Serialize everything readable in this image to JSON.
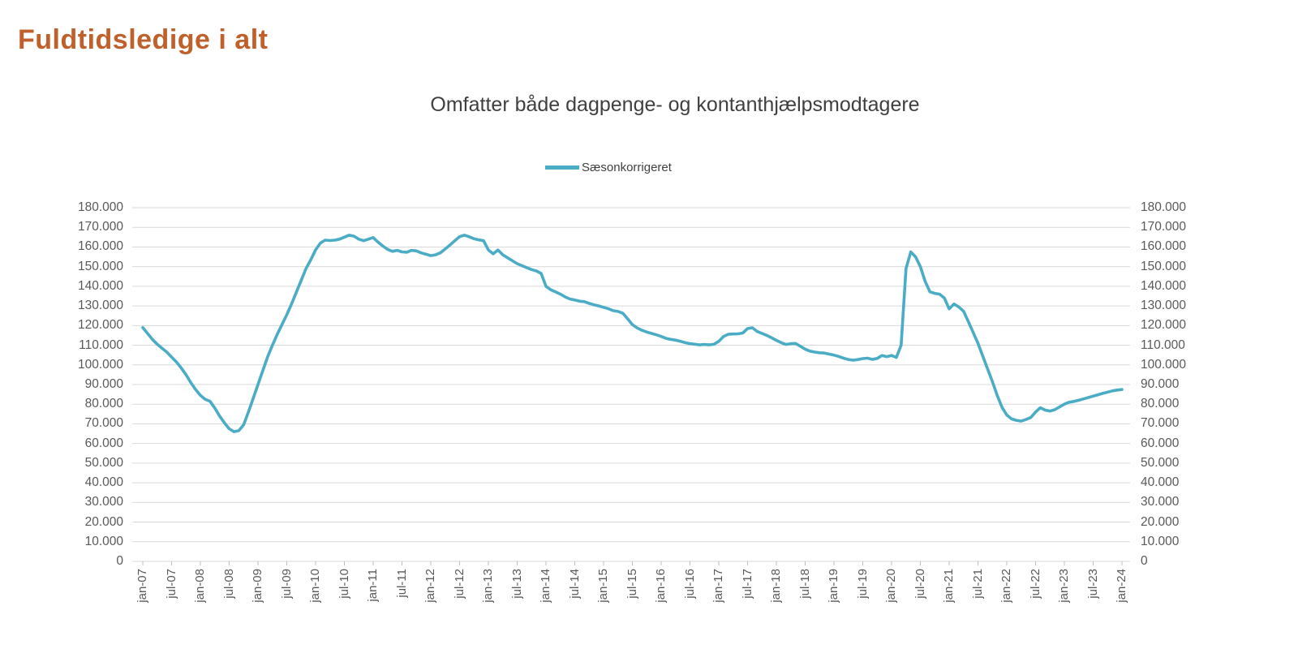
{
  "header": {
    "title": "Fuldtidsledige i alt",
    "title_color": "#C0612C"
  },
  "chart": {
    "subtitle": "Omfatter både dagpenge- og kontanthjælpsmodtagere",
    "legend_label": "Sæsonkorrigeret"
  },
  "colors": {
    "series_line": "#4BACC6",
    "gridline": "#D9D9D9",
    "tick": "#BFBFBF",
    "axis_text": "#595959",
    "subtitle_text": "#404040"
  },
  "chart_data": {
    "type": "line",
    "title": "Omfatter både dagpenge- og kontanthjælpsmodtagere",
    "legend": [
      "Sæsonkorrigeret"
    ],
    "legend_position": "top-center",
    "grid": "horizontal",
    "y_axis_sides": [
      "left",
      "right"
    ],
    "ylim": [
      0,
      180000
    ],
    "y_tick_interval": 10000,
    "y_tick_labels": [
      "0",
      "10.000",
      "20.000",
      "30.000",
      "40.000",
      "50.000",
      "60.000",
      "70.000",
      "80.000",
      "90.000",
      "100.000",
      "110.000",
      "120.000",
      "130.000",
      "140.000",
      "150.000",
      "160.000",
      "170.000",
      "180.000"
    ],
    "x_frequency": "monthly",
    "x_start": "jan-07",
    "x_end": "jan-24",
    "x_tick_labels": [
      "jan-07",
      "jul-07",
      "jan-08",
      "jul-08",
      "jan-09",
      "jul-09",
      "jan-10",
      "jul-10",
      "jan-11",
      "jul-11",
      "jan-12",
      "jul-12",
      "jan-13",
      "jul-13",
      "jan-14",
      "jul-14",
      "jan-15",
      "jul-15",
      "jan-16",
      "jul-16",
      "jan-17",
      "jul-17",
      "jan-18",
      "jul-18",
      "jan-19",
      "jul-19",
      "jan-20",
      "jul-20",
      "jan-21",
      "jul-21",
      "jan-22",
      "jul-22",
      "jan-23",
      "jul-23",
      "jan-24"
    ],
    "values": [
      119000,
      116000,
      113000,
      110500,
      108500,
      106500,
      104000,
      101500,
      98500,
      95000,
      91000,
      87500,
      84500,
      82500,
      81500,
      78000,
      74000,
      70500,
      67500,
      66000,
      66500,
      69500,
      76000,
      83000,
      90000,
      97000,
      104000,
      110000,
      115500,
      120500,
      125500,
      131000,
      137000,
      143000,
      149000,
      153500,
      158500,
      162000,
      163500,
      163300,
      163500,
      164000,
      165000,
      166000,
      165500,
      164000,
      163200,
      164000,
      164800,
      162500,
      160500,
      158800,
      157800,
      158300,
      157500,
      157300,
      158300,
      158000,
      157000,
      156300,
      155600,
      156000,
      157000,
      159000,
      161000,
      163200,
      165200,
      166000,
      165200,
      164200,
      163600,
      163200,
      158500,
      156500,
      158500,
      156000,
      154500,
      153000,
      151500,
      150500,
      149500,
      148500,
      147800,
      146500,
      140000,
      138200,
      137200,
      136000,
      134600,
      133500,
      133000,
      132400,
      132200,
      131300,
      130600,
      130000,
      129300,
      128600,
      127600,
      127200,
      126300,
      123500,
      120500,
      118800,
      117600,
      116700,
      116000,
      115300,
      114500,
      113500,
      113000,
      112600,
      112000,
      111300,
      110800,
      110500,
      110200,
      110400,
      110200,
      110500,
      112000,
      114500,
      115600,
      115700,
      115800,
      116200,
      118500,
      118900,
      117000,
      116000,
      115000,
      113800,
      112500,
      111300,
      110400,
      110800,
      110900,
      109500,
      108000,
      107000,
      106500,
      106200,
      106000,
      105500,
      105000,
      104300,
      103400,
      102700,
      102400,
      102700,
      103200,
      103400,
      102800,
      103300,
      104800,
      104200,
      104800,
      103800,
      110000,
      149000,
      157500,
      155000,
      150000,
      142500,
      137200,
      136400,
      136000,
      134000,
      128500,
      131000,
      129500,
      127300,
      122000,
      116500,
      111000,
      104500,
      98000,
      91500,
      84500,
      78500,
      74500,
      72500,
      71800,
      71400,
      72200,
      73200,
      76000,
      78200,
      77000,
      76500,
      77200,
      78600,
      80000,
      81000,
      81400,
      82000,
      82700,
      83400,
      84100,
      84800,
      85500,
      86100,
      86800,
      87200,
      87500
    ]
  }
}
